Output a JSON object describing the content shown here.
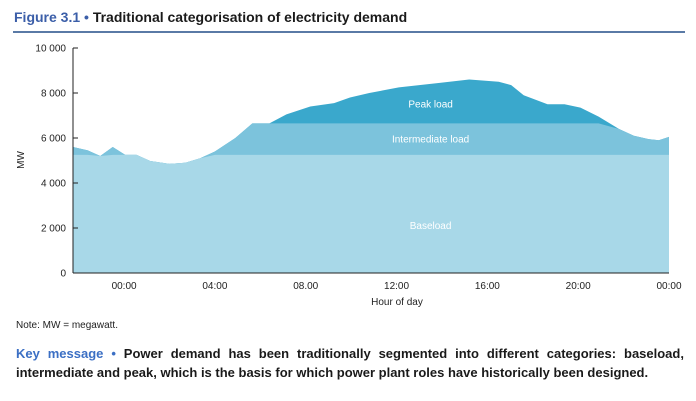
{
  "figure": {
    "number": "Figure 3.1",
    "separator": "•",
    "title": "Traditional categorisation of electricity demand"
  },
  "note": "Note: MW = megawatt.",
  "key_message": {
    "label": "Key message",
    "separator": "•",
    "text": "Power demand has been traditionally segmented into different categories: baseload, intermediate and peak, which is the basis for which power plant roles have historically been designed."
  },
  "chart_data": {
    "type": "area",
    "xlabel": "Hour of day",
    "ylabel": "MW",
    "ylim": [
      0,
      10000
    ],
    "xlim": [
      -2.25,
      24
    ],
    "yticks": [
      0,
      2000,
      4000,
      6000,
      8000,
      10000
    ],
    "ytick_labels": [
      "0",
      "2 000",
      "4 000",
      "6 000",
      "8 000",
      "10 000"
    ],
    "xticks": [
      0,
      4,
      8,
      12,
      16,
      20,
      24
    ],
    "xtick_labels": [
      "00:00",
      "04:00",
      "08.00",
      "12:00",
      "16:00",
      "20:00",
      "00:00"
    ],
    "grid": false,
    "baseload_level": 5250,
    "intermediate_level": 6650,
    "series": [
      {
        "name": "Baseload",
        "color": "#a8d8e8"
      },
      {
        "name": "Intermediate load",
        "color": "#7cc3dc"
      },
      {
        "name": "Peak load",
        "color": "#3aa8cc"
      }
    ],
    "demand": {
      "x": [
        -2.25,
        -1.6,
        -1.05,
        -0.5,
        0.05,
        0.55,
        1.15,
        2.0,
        2.7,
        3.35,
        4.0,
        4.9,
        5.65,
        6.4,
        7.15,
        8.2,
        9.25,
        9.95,
        10.8,
        12.1,
        13.9,
        15.2,
        16.5,
        17.05,
        17.6,
        18.65,
        19.4,
        20.1,
        20.9,
        21.8,
        22.45,
        23.1,
        23.55,
        24.0
      ],
      "y": [
        5600,
        5450,
        5200,
        5600,
        5250,
        5250,
        4980,
        4850,
        4900,
        5100,
        5400,
        6000,
        6650,
        6650,
        7050,
        7400,
        7550,
        7800,
        8000,
        8250,
        8450,
        8600,
        8500,
        8350,
        7900,
        7500,
        7500,
        7350,
        6950,
        6400,
        6100,
        5950,
        5900,
        6050
      ]
    }
  }
}
